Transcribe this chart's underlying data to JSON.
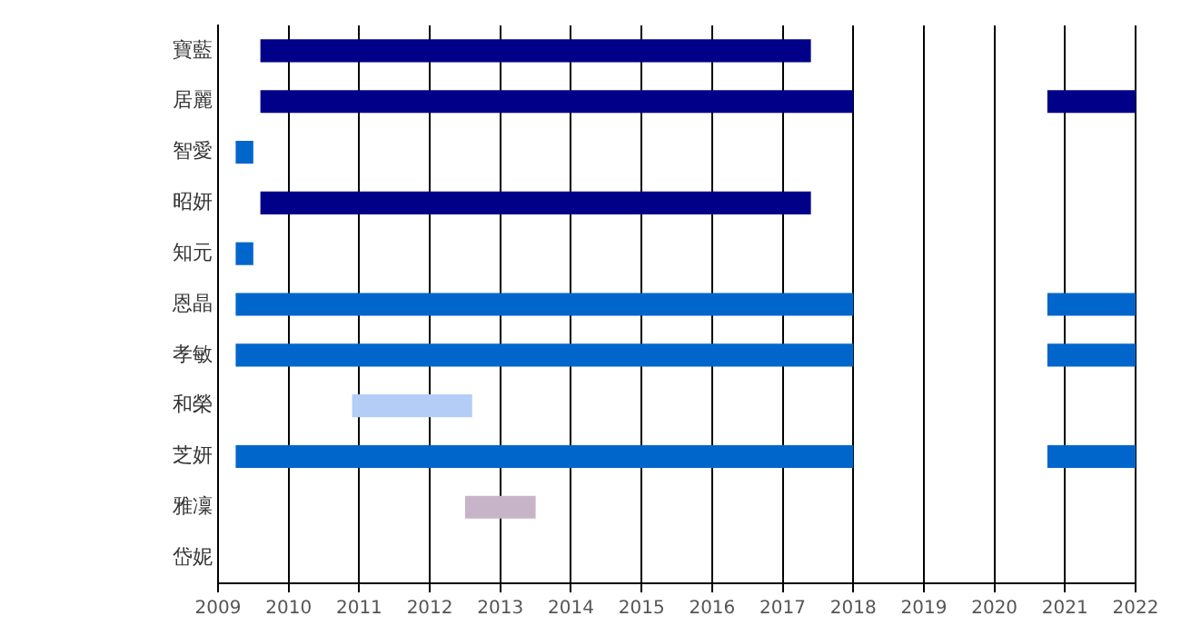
{
  "chart_data": {
    "type": "bar",
    "orientation": "horizontal",
    "categories": [
      "寶藍",
      "居麗",
      "智愛",
      "昭妍",
      "知元",
      "恩晶",
      "孝敏",
      "和榮",
      "芝妍",
      "雅凜",
      "岱妮"
    ],
    "series": [
      {
        "colors": [
          "#000088",
          "#000088",
          "#0066cc",
          "#000088",
          "#0066cc",
          "#0066cc",
          "#0066cc",
          "#b3cdf7",
          "#0066cc",
          "#c8b4c8",
          null
        ],
        "base": [
          2009.6,
          2009.6,
          2009.25,
          2009.6,
          2009.25,
          2009.25,
          2009.25,
          2010.9,
          2009.25,
          2012.5,
          null
        ],
        "values": [
          7.8,
          8.4,
          0.25,
          7.8,
          0.25,
          8.75,
          8.75,
          1.7,
          8.75,
          1.0,
          null
        ]
      },
      {
        "colors": [
          null,
          "#000088",
          null,
          null,
          null,
          "#0066cc",
          "#0066cc",
          null,
          "#0066cc",
          null,
          null
        ],
        "base": [
          null,
          2020.75,
          null,
          null,
          null,
          2020.75,
          2020.75,
          null,
          2020.75,
          null,
          null
        ],
        "values": [
          null,
          1.25,
          null,
          null,
          null,
          1.25,
          1.25,
          null,
          1.25,
          null,
          null
        ]
      }
    ],
    "xlim": [
      2009,
      2022
    ],
    "xticks": [
      2009,
      2010,
      2011,
      2012,
      2013,
      2014,
      2015,
      2016,
      2017,
      2018,
      2019,
      2020,
      2021,
      2022
    ],
    "grid": "x",
    "legend": false
  }
}
